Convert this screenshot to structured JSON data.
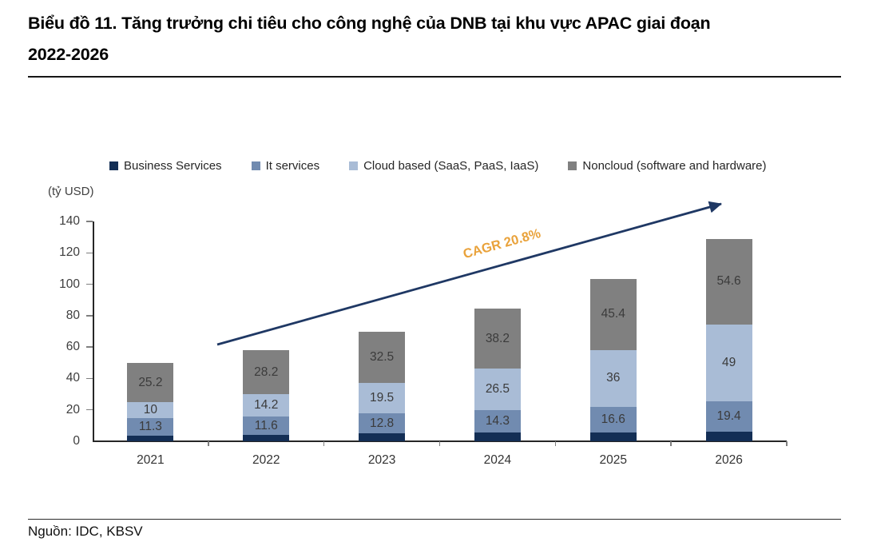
{
  "header": {
    "title_line1": "Biểu đồ 11. Tăng trưởng chi tiêu cho công nghệ của DNB tại khu vực APAC giai đoạn",
    "title_line2": "2022-2026"
  },
  "footer": {
    "source": "Nguồn: IDC, KBSV"
  },
  "chart_data": {
    "type": "bar",
    "stacked": true,
    "title": "Biểu đồ 11. Tăng trưởng chi tiêu cho công nghệ của DNB tại khu vực APAC giai đoạn 2022-2026",
    "unit_label": "(tỷ USD)",
    "xlabel": "",
    "ylabel": "(tỷ USD)",
    "categories": [
      "2021",
      "2022",
      "2023",
      "2024",
      "2025",
      "2026"
    ],
    "series": [
      {
        "name": "Business Services",
        "color": "#132E55",
        "labels_shown": false,
        "estimated": true,
        "values": [
          3.5,
          4,
          5,
          5.5,
          5.5,
          6
        ]
      },
      {
        "name": "It services",
        "color": "#718BB0",
        "labels_shown": true,
        "values": [
          11.3,
          11.6,
          12.8,
          14.3,
          16.6,
          19.4
        ]
      },
      {
        "name": "Cloud based (SaaS, PaaS, IaaS)",
        "color": "#A9BCD6",
        "labels_shown": true,
        "values": [
          10,
          14.2,
          19.5,
          26.5,
          36,
          49
        ]
      },
      {
        "name": "Noncloud (software and hardware)",
        "color": "#808080",
        "labels_shown": true,
        "values": [
          25.2,
          28.2,
          32.5,
          38.2,
          45.4,
          54.6
        ]
      }
    ],
    "ylim": [
      0,
      140
    ],
    "ytick_step": 20,
    "grid": false,
    "legend_position": "top",
    "annotation": {
      "text": "CAGR 20.8%",
      "color": "#E9A23B",
      "arrow_color": "#1F3864"
    }
  }
}
